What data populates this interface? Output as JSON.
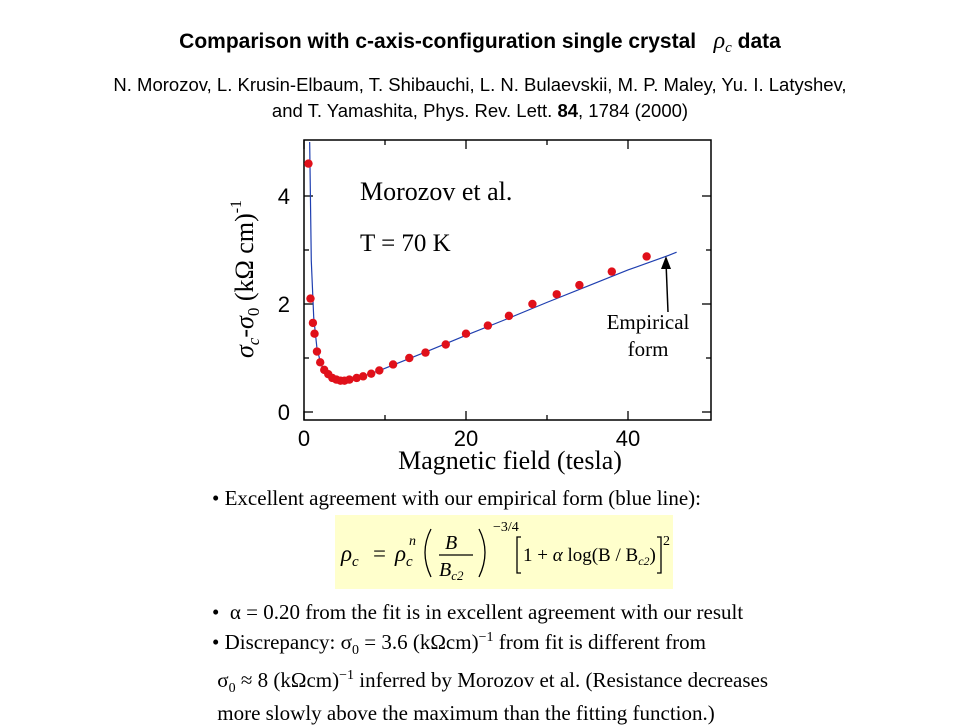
{
  "header": {
    "title_prefix": "Comparison with c-axis-configuration single crystal",
    "title_rho": "ρ",
    "title_rho_sub": "c",
    "title_suffix": "data",
    "authors_line1": "N. Morozov, L. Krusin-Elbaum, T. Shibauchi, L. N. Bulaevskii, M. P. Maley, Yu. I. Latyshev,",
    "authors_line2_a": "and T. Yamashita, Phys. Rev. Lett. ",
    "authors_line2_vol": "84",
    "authors_line2_b": ", 1784 (2000)"
  },
  "chart_data": {
    "type": "scatter",
    "xlabel": "Magnetic field (tesla)",
    "ylabel": "σc-σ0 (kΩ cm)-1",
    "xlim": [
      0,
      50
    ],
    "ylim": [
      0,
      5
    ],
    "x_ticks": [
      "0",
      "20",
      "40"
    ],
    "y_ticks": [
      "0",
      "2",
      "4"
    ],
    "annotations": {
      "label1": "Morozov et al.",
      "label2": "T = 70 K",
      "arrow_text_1": "Empirical",
      "arrow_text_2": "form"
    },
    "series": [
      {
        "marker": "circle",
        "color": "#e0101a",
        "x": [
          0.55,
          0.8,
          1.1,
          1.3,
          1.6,
          2.0,
          2.5,
          3.0,
          3.5,
          4.0,
          4.5,
          5.0,
          5.6,
          6.5,
          7.3,
          8.3,
          9.3,
          11.0,
          13.0,
          15.0,
          17.5,
          20.0,
          22.7,
          25.3,
          28.2,
          31.2,
          34.0,
          38.0,
          42.3
        ],
        "y": [
          4.6,
          2.1,
          1.65,
          1.45,
          1.12,
          0.92,
          0.78,
          0.7,
          0.63,
          0.6,
          0.58,
          0.58,
          0.6,
          0.63,
          0.66,
          0.71,
          0.77,
          0.88,
          1.0,
          1.1,
          1.25,
          1.45,
          1.6,
          1.78,
          2.0,
          2.18,
          2.35,
          2.6,
          2.88
        ]
      },
      {
        "type": "line",
        "color": "#1f3fb0",
        "x": [
          0.7,
          0.9,
          1.2,
          1.6,
          2.1,
          2.7,
          3.4,
          4.2,
          5.0,
          6.0,
          7.5,
          9.5,
          12.0,
          15.0,
          20.0,
          25.0,
          30.0,
          35.0,
          40.0,
          45.0,
          46.0
        ],
        "y": [
          5.0,
          2.8,
          1.75,
          1.18,
          0.88,
          0.72,
          0.63,
          0.59,
          0.58,
          0.6,
          0.67,
          0.78,
          0.93,
          1.11,
          1.42,
          1.72,
          2.03,
          2.33,
          2.63,
          2.9,
          2.96
        ]
      }
    ]
  },
  "bullets": {
    "b1": "Excellent agreement with our empirical form (blue line):",
    "b2_sym": "α",
    "b2_text": " = 0.20 from the fit is in excellent agreement with our result",
    "b3_a": "Discrepancy: ",
    "b3_sym": "σ",
    "b3_sub": "0",
    "b3_b": " = 3.6 (kΩcm)",
    "b3_sup": "−1",
    "b3_c": " from fit is different from",
    "b4_sym": "σ",
    "b4_sub": "0",
    "b4_b": " ≈ 8 (kΩcm)",
    "b4_sup": "−1",
    "b4_c": " inferred by Morozov et al. (Resistance decreases",
    "b5": "more slowly above the maximum than the fitting function.)"
  },
  "formula": {
    "lhs": "ρ",
    "lhs_sub": "c",
    "eq": "=",
    "rho": "ρ",
    "rho_sub": "c",
    "rho_sup": "n",
    "num": "B",
    "den": "B",
    "den_sub": "c2",
    "exp": "−3/4",
    "bracket_text_a": "1 + ",
    "alpha": "α",
    "bracket_text_b": " log(B / B",
    "bracket_sub": "c2",
    "bracket_text_c": ")",
    "bracket_exp": "2"
  }
}
